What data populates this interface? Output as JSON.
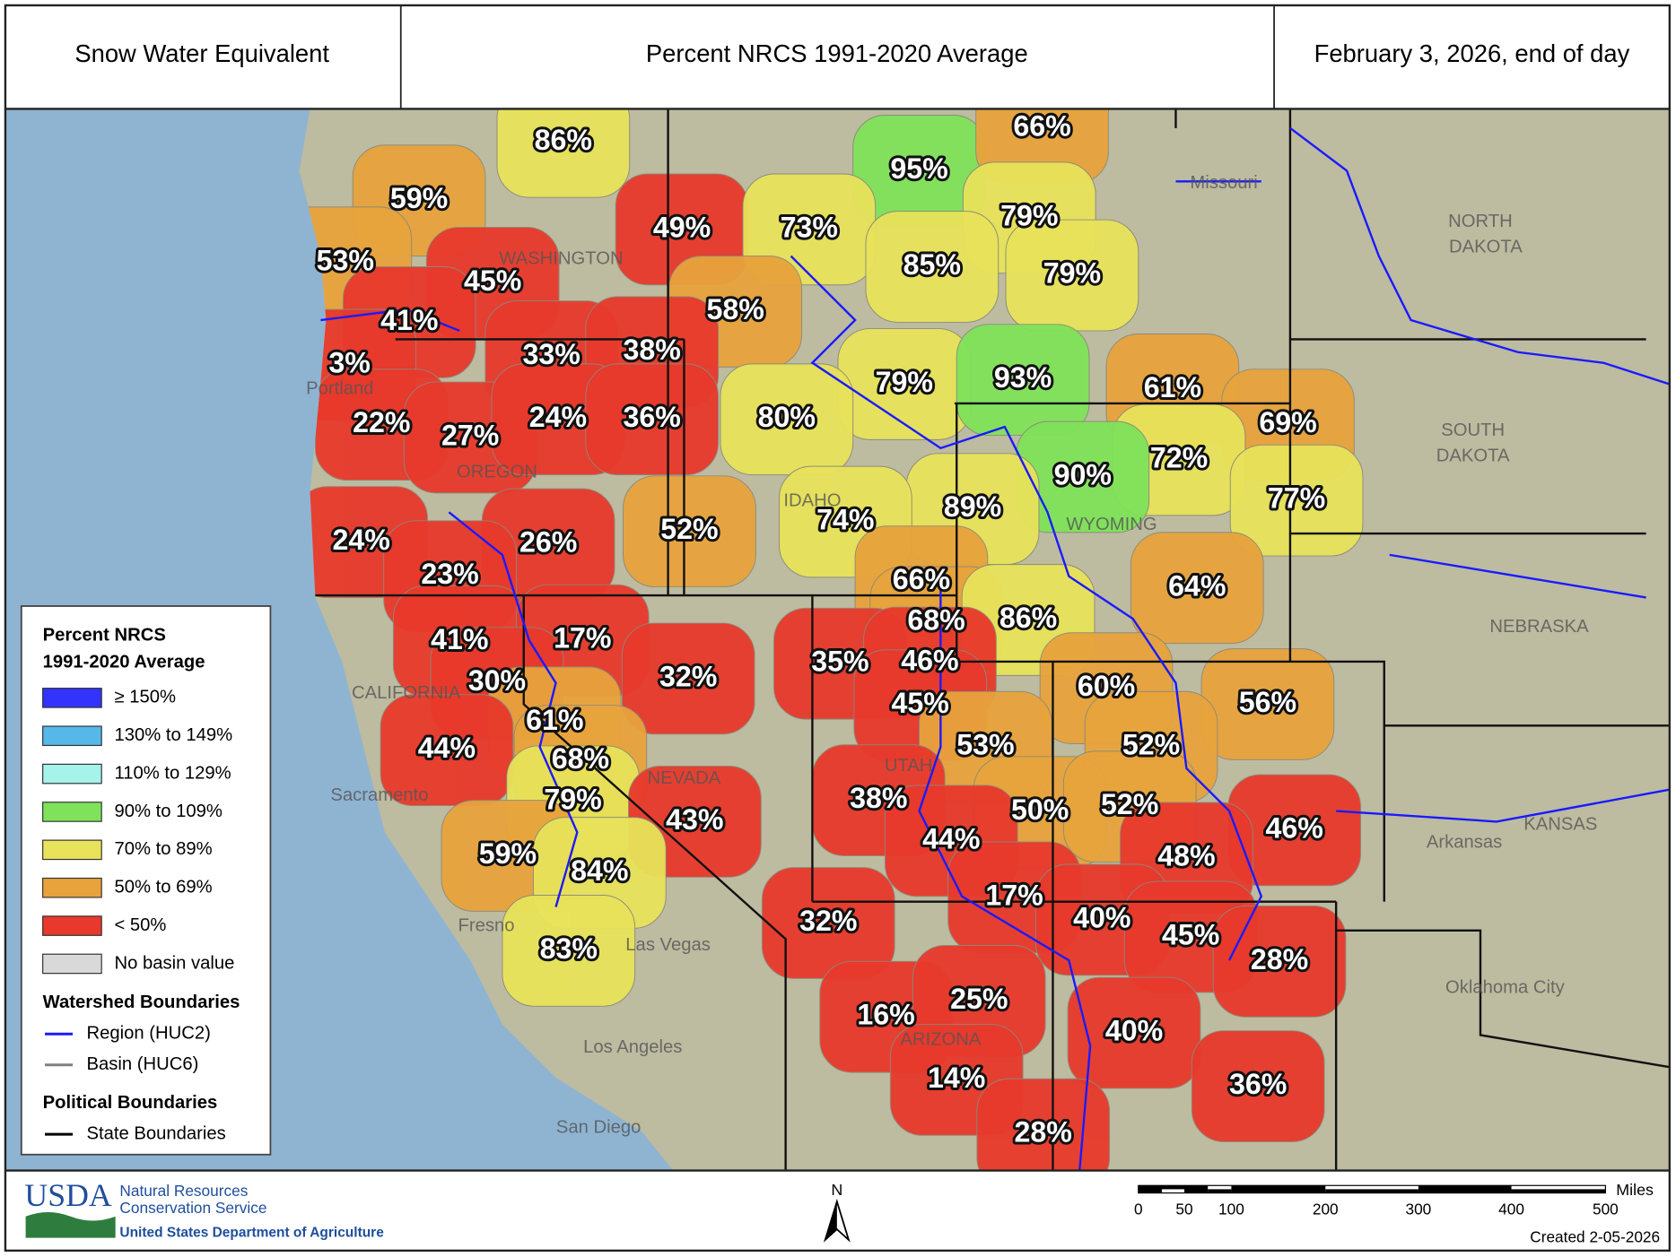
{
  "header": {
    "title": "Snow Water Equivalent",
    "subtitle": "Percent NRCS 1991-2020 Average",
    "date": "February 3, 2026, end of day"
  },
  "map": {
    "basins": [
      {
        "label": "86%",
        "color": "#e8e35a"
      },
      {
        "label": "95%",
        "color": "#7fe25a"
      },
      {
        "label": "66%",
        "color": "#e8a33c"
      },
      {
        "label": "59%",
        "color": "#e8a33c"
      },
      {
        "label": "53%",
        "color": "#e8a33c"
      },
      {
        "label": "45%",
        "color": "#e8392c"
      },
      {
        "label": "49%",
        "color": "#e8392c"
      },
      {
        "label": "73%",
        "color": "#e8e35a"
      },
      {
        "label": "79%",
        "color": "#e8e35a"
      },
      {
        "label": "85%",
        "color": "#e8e35a"
      },
      {
        "label": "79%",
        "color": "#e8e35a"
      },
      {
        "label": "41%",
        "color": "#e8392c"
      },
      {
        "label": "58%",
        "color": "#e8a33c"
      },
      {
        "label": "3%",
        "color": "#e8392c"
      },
      {
        "label": "33%",
        "color": "#e8392c"
      },
      {
        "label": "38%",
        "color": "#e8392c"
      },
      {
        "label": "79%",
        "color": "#e8e35a"
      },
      {
        "label": "93%",
        "color": "#7fe25a"
      },
      {
        "label": "61%",
        "color": "#e8a33c"
      },
      {
        "label": "22%",
        "color": "#e8392c"
      },
      {
        "label": "27%",
        "color": "#e8392c"
      },
      {
        "label": "24%",
        "color": "#e8392c"
      },
      {
        "label": "36%",
        "color": "#e8392c"
      },
      {
        "label": "80%",
        "color": "#e8e35a"
      },
      {
        "label": "69%",
        "color": "#e8a33c"
      },
      {
        "label": "72%",
        "color": "#e8e35a"
      },
      {
        "label": "90%",
        "color": "#7fe25a"
      },
      {
        "label": "77%",
        "color": "#e8e35a"
      },
      {
        "label": "89%",
        "color": "#e8e35a"
      },
      {
        "label": "74%",
        "color": "#e8e35a"
      },
      {
        "label": "24%",
        "color": "#e8392c"
      },
      {
        "label": "26%",
        "color": "#e8392c"
      },
      {
        "label": "52%",
        "color": "#e8a33c"
      },
      {
        "label": "23%",
        "color": "#e8392c"
      },
      {
        "label": "66%",
        "color": "#e8a33c"
      },
      {
        "label": "64%",
        "color": "#e8a33c"
      },
      {
        "label": "68%",
        "color": "#e8a33c"
      },
      {
        "label": "86%",
        "color": "#e8e35a"
      },
      {
        "label": "41%",
        "color": "#e8392c"
      },
      {
        "label": "17%",
        "color": "#e8392c"
      },
      {
        "label": "35%",
        "color": "#e8392c"
      },
      {
        "label": "46%",
        "color": "#e8392c"
      },
      {
        "label": "32%",
        "color": "#e8392c"
      },
      {
        "label": "30%",
        "color": "#e8392c"
      },
      {
        "label": "60%",
        "color": "#e8a33c"
      },
      {
        "label": "56%",
        "color": "#e8a33c"
      },
      {
        "label": "45%",
        "color": "#e8392c"
      },
      {
        "label": "61%",
        "color": "#e8a33c"
      },
      {
        "label": "53%",
        "color": "#e8a33c"
      },
      {
        "label": "52%",
        "color": "#e8a33c"
      },
      {
        "label": "44%",
        "color": "#e8392c"
      },
      {
        "label": "68%",
        "color": "#e8a33c"
      },
      {
        "label": "79%",
        "color": "#e8e35a"
      },
      {
        "label": "38%",
        "color": "#e8392c"
      },
      {
        "label": "50%",
        "color": "#e8a33c"
      },
      {
        "label": "52%",
        "color": "#e8a33c"
      },
      {
        "label": "46%",
        "color": "#e8392c"
      },
      {
        "label": "43%",
        "color": "#e8392c"
      },
      {
        "label": "44%",
        "color": "#e8392c"
      },
      {
        "label": "59%",
        "color": "#e8a33c"
      },
      {
        "label": "84%",
        "color": "#e8e35a"
      },
      {
        "label": "48%",
        "color": "#e8392c"
      },
      {
        "label": "17%",
        "color": "#e8392c"
      },
      {
        "label": "40%",
        "color": "#e8392c"
      },
      {
        "label": "45%",
        "color": "#e8392c"
      },
      {
        "label": "32%",
        "color": "#e8392c"
      },
      {
        "label": "28%",
        "color": "#e8392c"
      },
      {
        "label": "83%",
        "color": "#e8e35a"
      },
      {
        "label": "16%",
        "color": "#e8392c"
      },
      {
        "label": "25%",
        "color": "#e8392c"
      },
      {
        "label": "40%",
        "color": "#e8392c"
      },
      {
        "label": "14%",
        "color": "#e8392c"
      },
      {
        "label": "36%",
        "color": "#e8392c"
      },
      {
        "label": "28%",
        "color": "#e8392c"
      }
    ],
    "places": [
      "WASHINGTON",
      "OREGON",
      "IDAHO",
      "CALIFORNIA",
      "NEVADA",
      "UTAH",
      "WYOMING",
      "ARIZONA",
      "NORTH",
      "DAKOTA",
      "SOUTH",
      "DAKOTA",
      "NEBRASKA",
      "KANSAS",
      "Portland",
      "Sacramento",
      "Fresno",
      "Las Vegas",
      "Los Angeles",
      "San Diego",
      "Oklahoma City",
      "Missouri",
      "Arkansas"
    ]
  },
  "legend": {
    "title_lines": [
      "Percent NRCS",
      "1991-2020 Average"
    ],
    "classes": [
      {
        "label": "≥ 150%",
        "color": "#3333ff"
      },
      {
        "label": "130% to 149%",
        "color": "#55b8e8"
      },
      {
        "label": "110% to 129%",
        "color": "#a5f3ea"
      },
      {
        "label": "90% to 109%",
        "color": "#7fe25a"
      },
      {
        "label": "70% to 89%",
        "color": "#e8e35a"
      },
      {
        "label": "50% to 69%",
        "color": "#e8a33c"
      },
      {
        "label": "< 50%",
        "color": "#e8392c"
      },
      {
        "label": "No basin value",
        "color": "#d9d9d9"
      }
    ],
    "watershed_title": "Watershed Boundaries",
    "watershed_items": [
      {
        "label": "Region (HUC2)",
        "color": "#1a1aff"
      },
      {
        "label": "Basin (HUC6)",
        "color": "#808080"
      }
    ],
    "political_title": "Political Boundaries",
    "political_items": [
      {
        "label": "State Boundaries",
        "color": "#000000"
      }
    ]
  },
  "footer": {
    "agency": "USDA",
    "agency_lines": [
      "Natural Resources",
      "Conservation Service"
    ],
    "department": "United States Department of Agriculture",
    "north": "N",
    "scale_labels": [
      0,
      50,
      100,
      200,
      300,
      400,
      500
    ],
    "scale_unit": "Miles",
    "created": "Created 2-05-2026"
  }
}
